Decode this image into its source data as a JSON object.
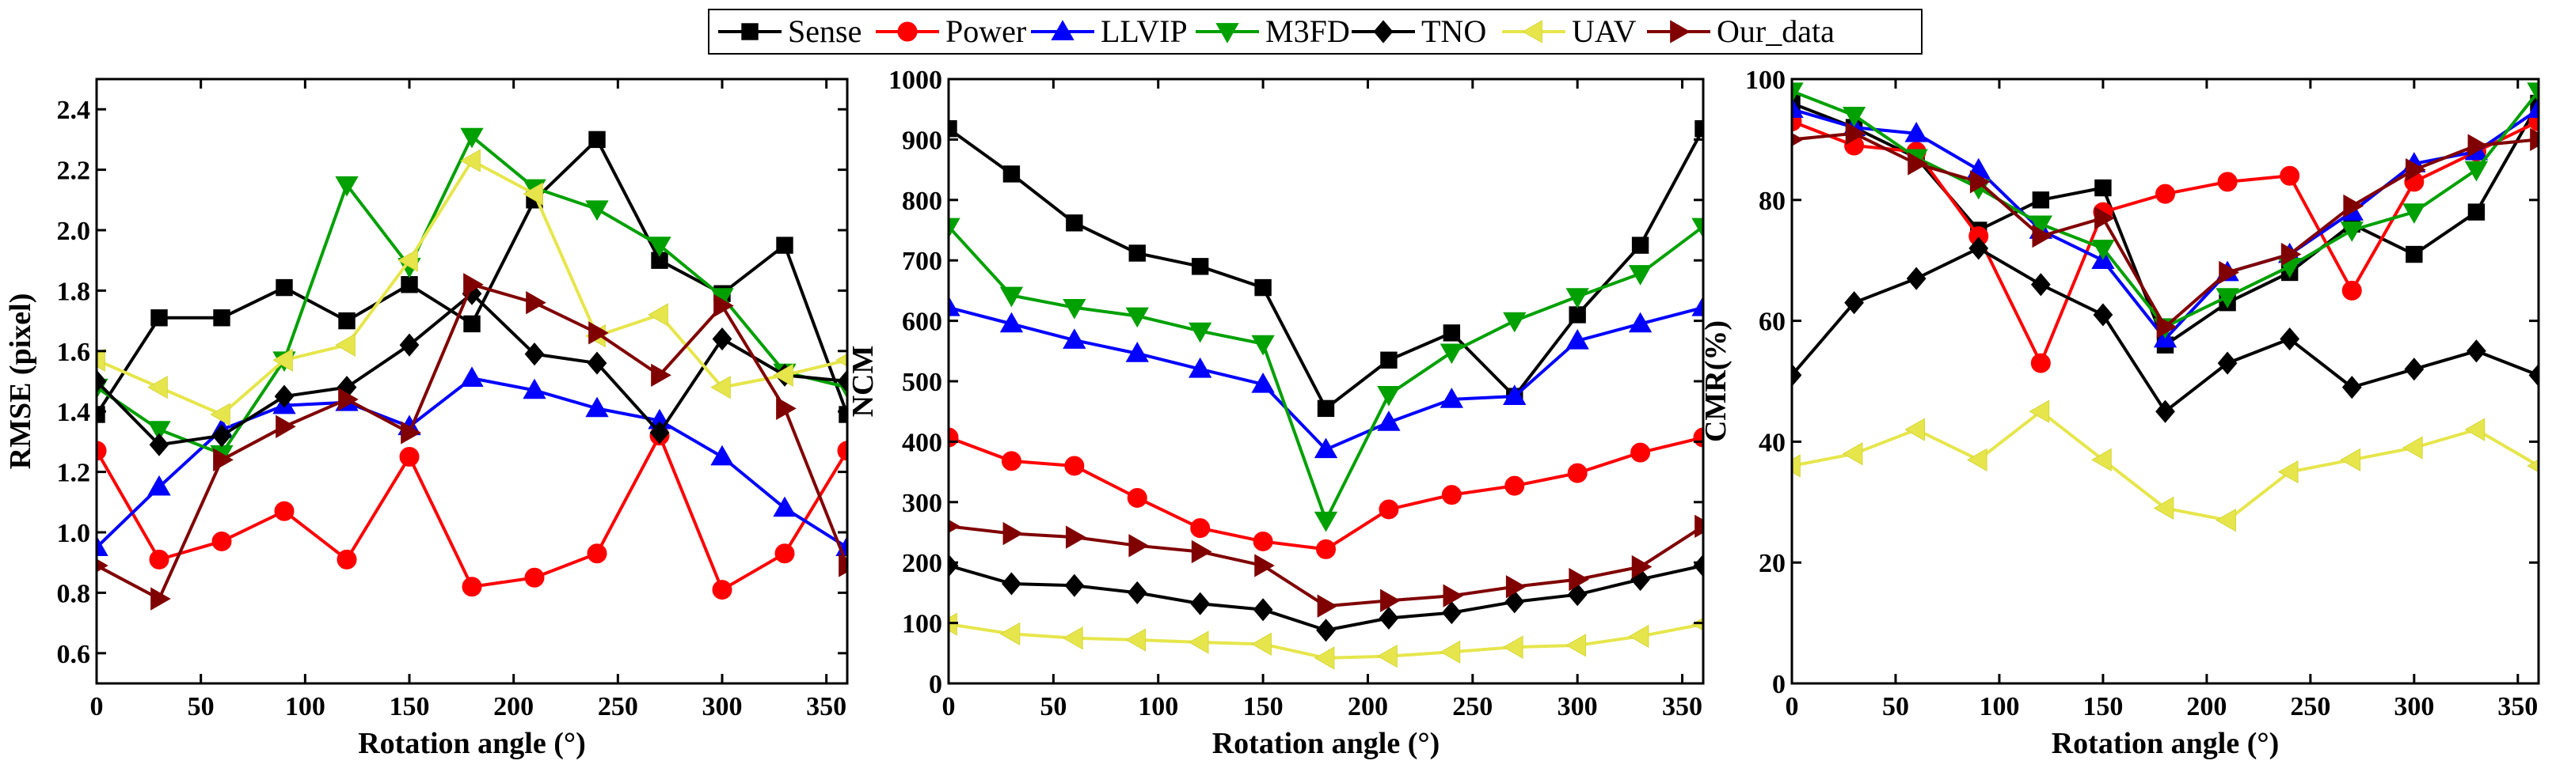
{
  "legend": {
    "entries": [
      {
        "name": "Sense",
        "color": "#000000",
        "marker": "square"
      },
      {
        "name": "Power",
        "color": "#ff0000",
        "marker": "circle"
      },
      {
        "name": "LLVIP",
        "color": "#0000ff",
        "marker": "triangle-up"
      },
      {
        "name": "M3FD",
        "color": "#00a000",
        "marker": "triangle-down"
      },
      {
        "name": "TNO",
        "color": "#000000",
        "marker": "diamond"
      },
      {
        "name": "UAV",
        "color": "#e6e64c",
        "marker": "triangle-left"
      },
      {
        "name": "Our_data",
        "color": "#800000",
        "marker": "triangle-right"
      }
    ]
  },
  "chart_data": [
    {
      "type": "line",
      "title": "",
      "xlabel": "Rotation angle (°)",
      "ylabel": "RMSE (pixel)",
      "xlim": [
        0,
        360
      ],
      "ylim": [
        0.5,
        2.5
      ],
      "xticks": [
        0,
        50,
        100,
        150,
        200,
        250,
        300,
        350
      ],
      "yticks": [
        0.6,
        0.8,
        1.0,
        1.2,
        1.4,
        1.6,
        1.8,
        2.0,
        2.2,
        2.4
      ],
      "ytick_decimals": 1,
      "x": [
        0,
        30,
        60,
        90,
        120,
        150,
        180,
        210,
        240,
        270,
        300,
        330,
        360
      ],
      "series": [
        {
          "name": "Sense",
          "values": [
            1.39,
            1.71,
            1.71,
            1.81,
            1.7,
            1.82,
            1.69,
            2.1,
            2.3,
            1.9,
            1.79,
            1.95,
            1.39
          ]
        },
        {
          "name": "Power",
          "values": [
            1.27,
            0.91,
            0.97,
            1.07,
            0.91,
            1.25,
            0.82,
            0.85,
            0.93,
            1.32,
            0.81,
            0.93,
            1.27
          ]
        },
        {
          "name": "LLVIP",
          "values": [
            0.95,
            1.15,
            1.34,
            1.42,
            1.43,
            1.35,
            1.51,
            1.47,
            1.41,
            1.37,
            1.25,
            1.08,
            0.95
          ]
        },
        {
          "name": "M3FD",
          "values": [
            1.48,
            1.34,
            1.26,
            1.57,
            2.15,
            1.88,
            2.31,
            2.14,
            2.07,
            1.95,
            1.78,
            1.53,
            1.48
          ]
        },
        {
          "name": "TNO",
          "values": [
            1.5,
            1.29,
            1.32,
            1.45,
            1.48,
            1.62,
            1.79,
            1.59,
            1.56,
            1.33,
            1.64,
            1.52,
            1.5
          ]
        },
        {
          "name": "UAV",
          "values": [
            1.57,
            1.48,
            1.39,
            1.57,
            1.62,
            1.9,
            2.23,
            2.12,
            1.65,
            1.72,
            1.48,
            1.52,
            1.57
          ]
        },
        {
          "name": "Our_data",
          "values": [
            0.89,
            0.78,
            1.24,
            1.35,
            1.44,
            1.33,
            1.82,
            1.76,
            1.66,
            1.52,
            1.75,
            1.41,
            0.89
          ]
        }
      ]
    },
    {
      "type": "line",
      "title": "",
      "xlabel": "Rotation angle (°)",
      "ylabel": "NCM",
      "xlim": [
        0,
        360
      ],
      "ylim": [
        0,
        1000
      ],
      "xticks": [
        0,
        50,
        100,
        150,
        200,
        250,
        300,
        350
      ],
      "yticks": [
        0,
        100,
        200,
        300,
        400,
        500,
        600,
        700,
        800,
        900,
        1000
      ],
      "ytick_decimals": 0,
      "x": [
        0,
        30,
        60,
        90,
        120,
        150,
        180,
        210,
        240,
        270,
        300,
        330,
        360
      ],
      "series": [
        {
          "name": "Sense",
          "values": [
            918,
            843,
            762,
            712,
            690,
            655,
            455,
            535,
            580,
            475,
            610,
            725,
            918
          ]
        },
        {
          "name": "Power",
          "values": [
            407,
            368,
            360,
            307,
            257,
            235,
            222,
            288,
            312,
            327,
            348,
            382,
            407
          ]
        },
        {
          "name": "LLVIP",
          "values": [
            622,
            595,
            568,
            546,
            520,
            495,
            387,
            432,
            470,
            475,
            567,
            595,
            622
          ]
        },
        {
          "name": "M3FD",
          "values": [
            756,
            642,
            622,
            608,
            583,
            562,
            270,
            478,
            548,
            600,
            640,
            678,
            756
          ]
        },
        {
          "name": "TNO",
          "values": [
            195,
            165,
            162,
            150,
            132,
            122,
            88,
            108,
            117,
            135,
            147,
            172,
            195
          ]
        },
        {
          "name": "UAV",
          "values": [
            98,
            82,
            75,
            72,
            68,
            65,
            42,
            45,
            52,
            60,
            63,
            78,
            98
          ]
        },
        {
          "name": "Our_data",
          "values": [
            260,
            248,
            242,
            228,
            218,
            195,
            128,
            137,
            145,
            160,
            172,
            193,
            260
          ]
        }
      ]
    },
    {
      "type": "line",
      "title": "",
      "xlabel": "Rotation angle (°)",
      "ylabel": "CMR(%)",
      "xlim": [
        0,
        360
      ],
      "ylim": [
        0,
        100
      ],
      "xticks": [
        0,
        50,
        100,
        150,
        200,
        250,
        300,
        350
      ],
      "yticks": [
        0,
        20,
        40,
        60,
        80,
        100
      ],
      "ytick_decimals": 0,
      "x": [
        0,
        30,
        60,
        90,
        120,
        150,
        180,
        210,
        240,
        270,
        300,
        330,
        360
      ],
      "series": [
        {
          "name": "Sense",
          "values": [
            96,
            92,
            87,
            75,
            80,
            82,
            56,
            63,
            68,
            76,
            71,
            78,
            96
          ]
        },
        {
          "name": "Power",
          "values": [
            93,
            89,
            88,
            74,
            53,
            78,
            81,
            83,
            84,
            65,
            83,
            88,
            93
          ]
        },
        {
          "name": "LLVIP",
          "values": [
            95,
            92,
            91,
            85,
            75,
            70,
            57,
            68,
            71,
            78,
            86,
            88,
            95
          ]
        },
        {
          "name": "M3FD",
          "values": [
            98,
            94,
            87,
            82,
            76,
            72,
            59,
            64,
            69,
            75,
            78,
            85,
            98
          ]
        },
        {
          "name": "TNO",
          "values": [
            51,
            63,
            67,
            72,
            66,
            61,
            45,
            53,
            57,
            49,
            52,
            55,
            51
          ]
        },
        {
          "name": "UAV",
          "values": [
            36,
            38,
            42,
            37,
            45,
            37,
            29,
            27,
            35,
            37,
            39,
            42,
            36
          ]
        },
        {
          "name": "Our_data",
          "values": [
            90,
            91,
            86,
            83,
            74,
            77,
            59,
            68,
            71,
            79,
            85,
            89,
            90
          ]
        }
      ]
    }
  ]
}
